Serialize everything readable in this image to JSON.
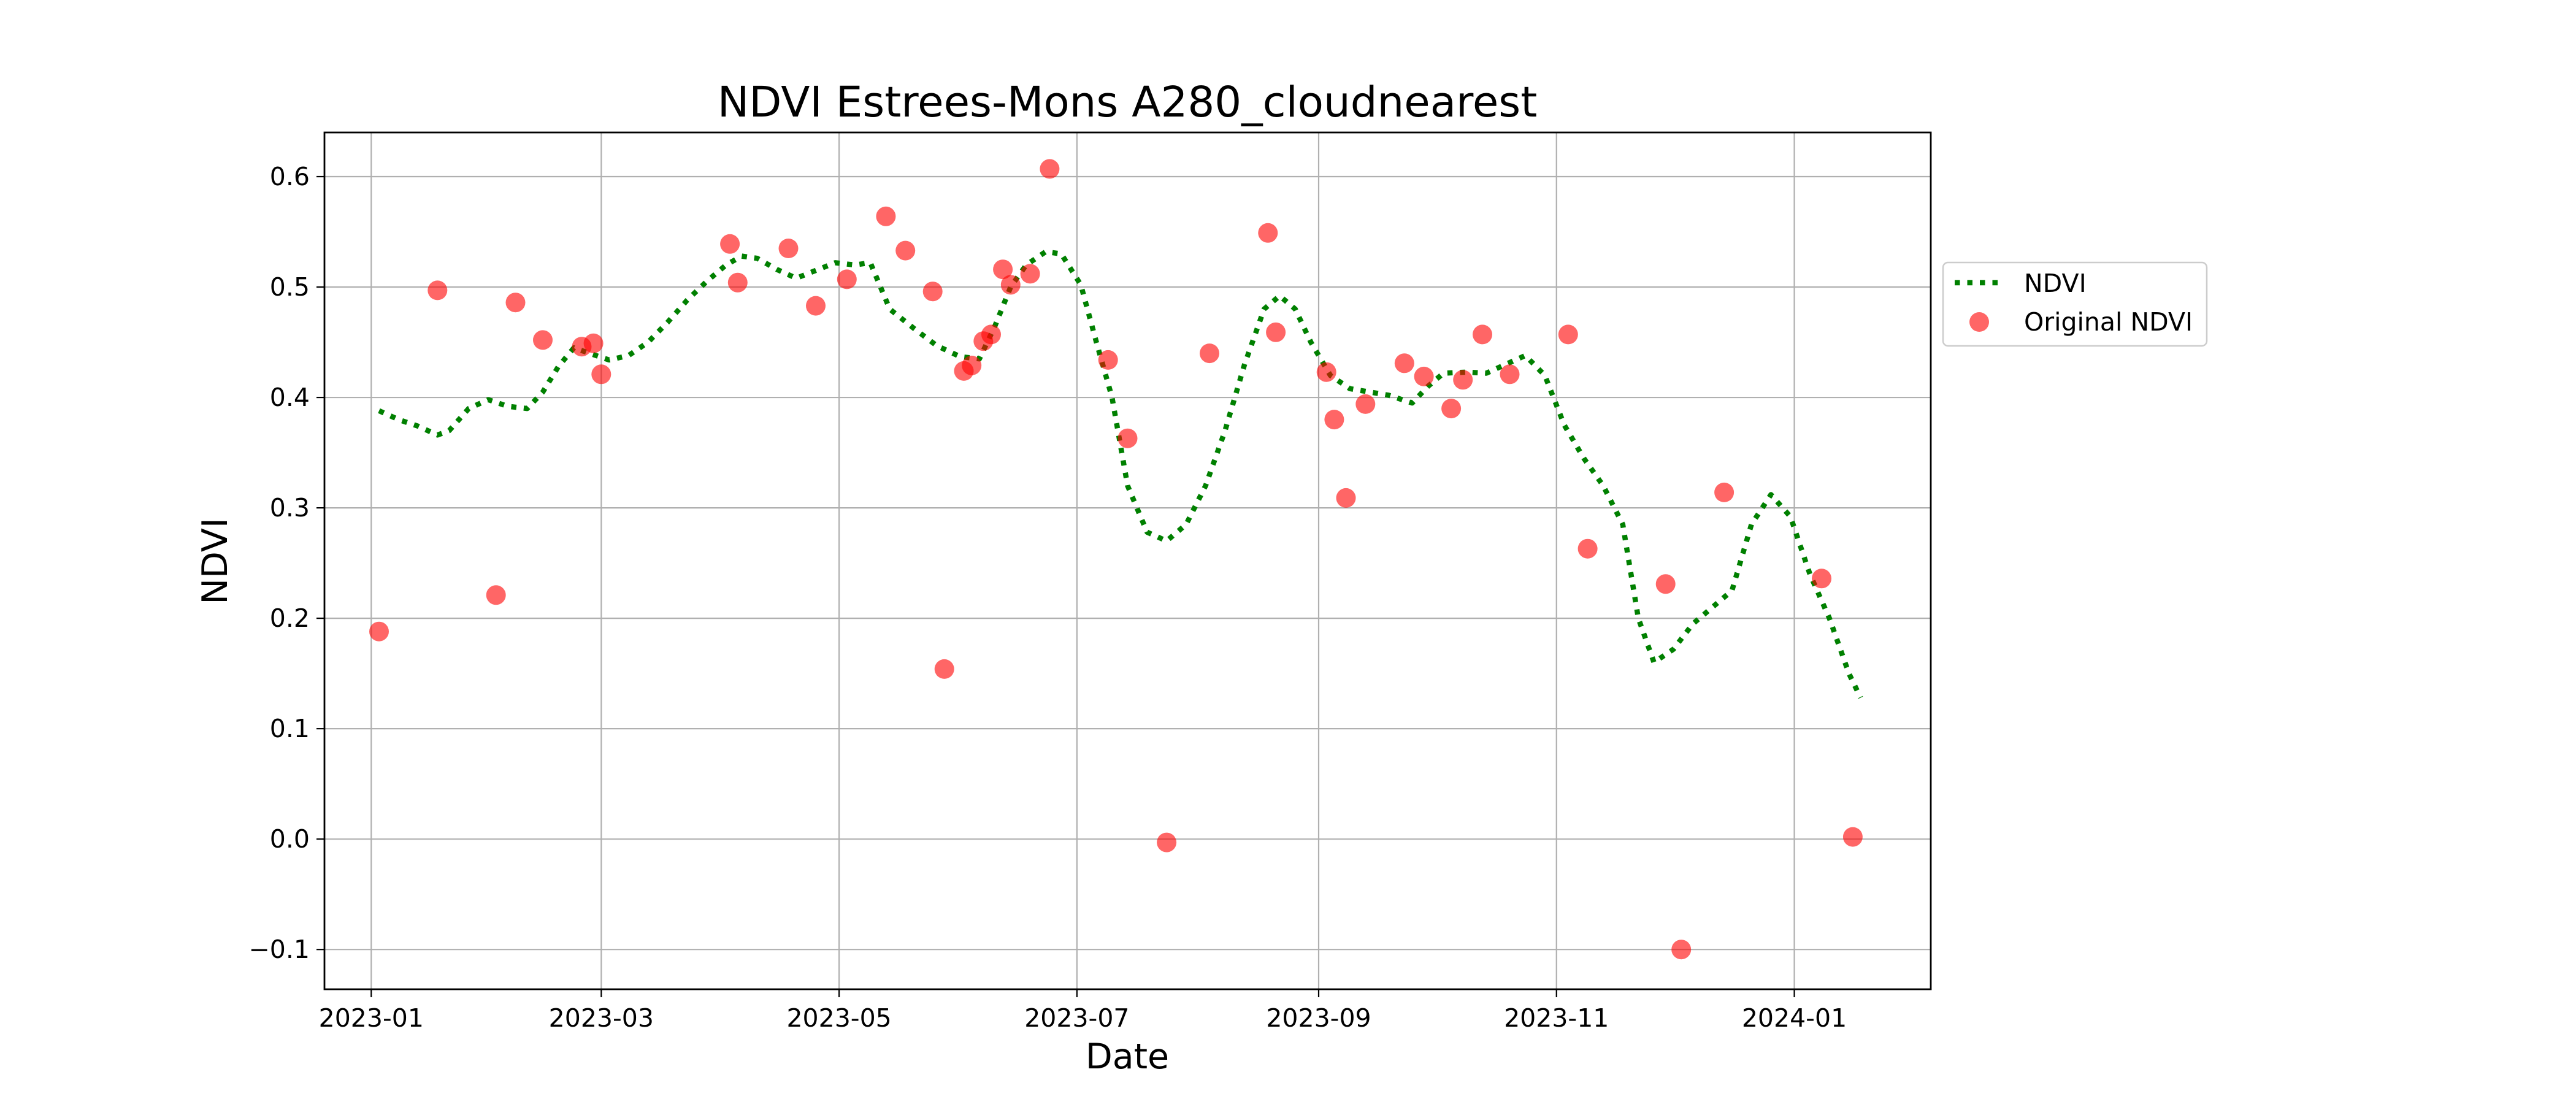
{
  "chart_data": {
    "type": "scatter",
    "title": "NDVI Estrees-Mons A280_cloudnearest",
    "xlabel": "Date",
    "ylabel": "NDVI",
    "x_type": "date",
    "xlim": [
      "2022-12-20",
      "2024-02-05"
    ],
    "ylim": [
      -0.136,
      0.64
    ],
    "x_ticks": [
      "2023-01-01",
      "2023-03-01",
      "2023-05-01",
      "2023-07-01",
      "2023-09-01",
      "2023-11-01",
      "2024-01-01"
    ],
    "x_tick_labels": [
      "2023-01",
      "2023-03",
      "2023-05",
      "2023-07",
      "2023-09",
      "2023-11",
      "2024-01"
    ],
    "y_ticks": [
      -0.1,
      0.0,
      0.1,
      0.2,
      0.3,
      0.4,
      0.5,
      0.6
    ],
    "y_tick_labels": [
      "−0.1",
      "0.0",
      "0.1",
      "0.2",
      "0.3",
      "0.4",
      "0.5",
      "0.6"
    ],
    "grid": true,
    "legend_position": "outside right, upper",
    "series": [
      {
        "name": "NDVI",
        "kind": "line",
        "style": "dotted",
        "color": "#008000",
        "points": [
          [
            "2023-01-03",
            0.388
          ],
          [
            "2023-01-08",
            0.38
          ],
          [
            "2023-01-13",
            0.374
          ],
          [
            "2023-01-18",
            0.366
          ],
          [
            "2023-01-21",
            0.37
          ],
          [
            "2023-01-26",
            0.39
          ],
          [
            "2023-01-31",
            0.398
          ],
          [
            "2023-02-05",
            0.392
          ],
          [
            "2023-02-10",
            0.39
          ],
          [
            "2023-02-14",
            0.405
          ],
          [
            "2023-02-18",
            0.428
          ],
          [
            "2023-02-22",
            0.445
          ],
          [
            "2023-02-26",
            0.44
          ],
          [
            "2023-03-03",
            0.434
          ],
          [
            "2023-03-08",
            0.438
          ],
          [
            "2023-03-13",
            0.45
          ],
          [
            "2023-03-18",
            0.468
          ],
          [
            "2023-03-23",
            0.488
          ],
          [
            "2023-03-28",
            0.505
          ],
          [
            "2023-04-02",
            0.52
          ],
          [
            "2023-04-06",
            0.528
          ],
          [
            "2023-04-10",
            0.526
          ],
          [
            "2023-04-15",
            0.516
          ],
          [
            "2023-04-20",
            0.508
          ],
          [
            "2023-04-25",
            0.515
          ],
          [
            "2023-04-30",
            0.522
          ],
          [
            "2023-05-05",
            0.52
          ],
          [
            "2023-05-09",
            0.522
          ],
          [
            "2023-05-14",
            0.48
          ],
          [
            "2023-05-20",
            0.463
          ],
          [
            "2023-05-26",
            0.447
          ],
          [
            "2023-06-01",
            0.437
          ],
          [
            "2023-06-06",
            0.435
          ],
          [
            "2023-06-10",
            0.465
          ],
          [
            "2023-06-14",
            0.5
          ],
          [
            "2023-06-18",
            0.52
          ],
          [
            "2023-06-23",
            0.532
          ],
          [
            "2023-06-27",
            0.53
          ],
          [
            "2023-07-02",
            0.502
          ],
          [
            "2023-07-06",
            0.45
          ],
          [
            "2023-07-10",
            0.4
          ],
          [
            "2023-07-14",
            0.32
          ],
          [
            "2023-07-19",
            0.278
          ],
          [
            "2023-07-24",
            0.27
          ],
          [
            "2023-07-29",
            0.285
          ],
          [
            "2023-08-03",
            0.32
          ],
          [
            "2023-08-08",
            0.37
          ],
          [
            "2023-08-13",
            0.43
          ],
          [
            "2023-08-18",
            0.48
          ],
          [
            "2023-08-22",
            0.492
          ],
          [
            "2023-08-26",
            0.48
          ],
          [
            "2023-08-30",
            0.45
          ],
          [
            "2023-09-04",
            0.42
          ],
          [
            "2023-09-09",
            0.408
          ],
          [
            "2023-09-14",
            0.405
          ],
          [
            "2023-09-19",
            0.402
          ],
          [
            "2023-09-25",
            0.395
          ],
          [
            "2023-09-29",
            0.41
          ],
          [
            "2023-10-03",
            0.422
          ],
          [
            "2023-10-09",
            0.423
          ],
          [
            "2023-10-14",
            0.422
          ],
          [
            "2023-10-19",
            0.43
          ],
          [
            "2023-10-24",
            0.438
          ],
          [
            "2023-10-29",
            0.42
          ],
          [
            "2023-11-03",
            0.375
          ],
          [
            "2023-11-08",
            0.345
          ],
          [
            "2023-11-13",
            0.32
          ],
          [
            "2023-11-18",
            0.285
          ],
          [
            "2023-11-22",
            0.2
          ],
          [
            "2023-11-26",
            0.16
          ],
          [
            "2023-12-01",
            0.172
          ],
          [
            "2023-12-06",
            0.195
          ],
          [
            "2023-12-11",
            0.21
          ],
          [
            "2023-12-16",
            0.225
          ],
          [
            "2023-12-21",
            0.285
          ],
          [
            "2023-12-26",
            0.312
          ],
          [
            "2023-12-31",
            0.292
          ],
          [
            "2024-01-05",
            0.24
          ],
          [
            "2024-01-10",
            0.2
          ],
          [
            "2024-01-15",
            0.15
          ],
          [
            "2024-01-18",
            0.128
          ]
        ]
      },
      {
        "name": "Original NDVI",
        "kind": "scatter",
        "color": "#ff0000",
        "opacity": 0.6,
        "points": [
          [
            "2023-01-03",
            0.188
          ],
          [
            "2023-01-18",
            0.497
          ],
          [
            "2023-02-02",
            0.221
          ],
          [
            "2023-02-07",
            0.486
          ],
          [
            "2023-02-14",
            0.452
          ],
          [
            "2023-02-24",
            0.446
          ],
          [
            "2023-02-27",
            0.449
          ],
          [
            "2023-03-01",
            0.421
          ],
          [
            "2023-04-03",
            0.539
          ],
          [
            "2023-04-05",
            0.504
          ],
          [
            "2023-04-18",
            0.535
          ],
          [
            "2023-04-25",
            0.483
          ],
          [
            "2023-05-03",
            0.507
          ],
          [
            "2023-05-13",
            0.564
          ],
          [
            "2023-05-18",
            0.533
          ],
          [
            "2023-05-25",
            0.496
          ],
          [
            "2023-05-28",
            0.154
          ],
          [
            "2023-06-02",
            0.424
          ],
          [
            "2023-06-04",
            0.429
          ],
          [
            "2023-06-07",
            0.451
          ],
          [
            "2023-06-09",
            0.457
          ],
          [
            "2023-06-12",
            0.516
          ],
          [
            "2023-06-14",
            0.502
          ],
          [
            "2023-06-19",
            0.512
          ],
          [
            "2023-06-24",
            0.607
          ],
          [
            "2023-07-09",
            0.434
          ],
          [
            "2023-07-14",
            0.363
          ],
          [
            "2023-07-24",
            -0.003
          ],
          [
            "2023-08-04",
            0.44
          ],
          [
            "2023-08-19",
            0.549
          ],
          [
            "2023-08-21",
            0.459
          ],
          [
            "2023-09-03",
            0.423
          ],
          [
            "2023-09-05",
            0.38
          ],
          [
            "2023-09-08",
            0.309
          ],
          [
            "2023-09-13",
            0.394
          ],
          [
            "2023-09-23",
            0.431
          ],
          [
            "2023-09-28",
            0.419
          ],
          [
            "2023-10-05",
            0.39
          ],
          [
            "2023-10-08",
            0.416
          ],
          [
            "2023-10-13",
            0.457
          ],
          [
            "2023-10-20",
            0.421
          ],
          [
            "2023-11-04",
            0.457
          ],
          [
            "2023-11-09",
            0.263
          ],
          [
            "2023-11-29",
            0.231
          ],
          [
            "2023-12-03",
            -0.1
          ],
          [
            "2023-12-14",
            0.314
          ],
          [
            "2024-01-08",
            0.236
          ],
          [
            "2024-01-16",
            0.002
          ]
        ]
      }
    ]
  }
}
